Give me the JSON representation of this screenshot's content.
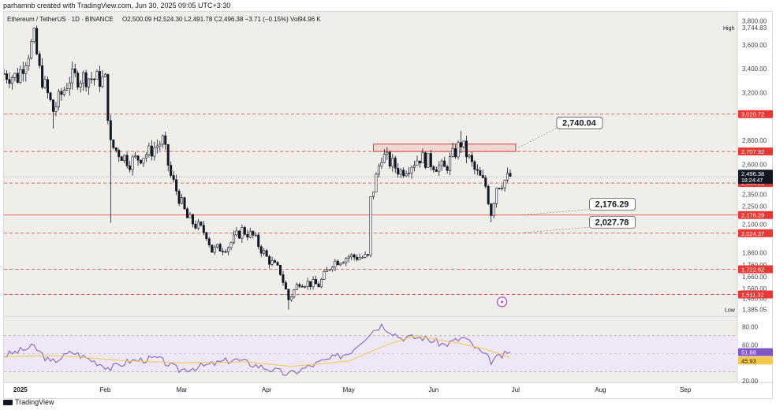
{
  "header": {
    "attribution": "parhamnb created with TradingView.com, Jun 30, 2025 09:05 UTC+3:30",
    "symbol": "Ethereum / TetherUS · 1D · BINANCE",
    "ohlc": "O2,500.09  H2,524.30  L2,491.78  C2,496.38  −3.71 (−0.15%)  Vol94.96 K"
  },
  "footer": {
    "brand": "TradingView"
  },
  "colors": {
    "up": "#131722",
    "down": "#131722",
    "bg": "#f0eeeb",
    "red": "#e53935",
    "rsi_line": "#7e57c2",
    "rsi_ma": "#f2c94c",
    "rsi_band": "#ede7f6"
  },
  "chart_data": {
    "type": "candlestick",
    "title": "Ethereum / TetherUS · 1D · BINANCE",
    "ylim": [
      1350,
      3850
    ],
    "y_ticks": [
      3800,
      3600,
      3400,
      3200,
      2800,
      2600,
      2350,
      2250,
      2100,
      1860,
      1760,
      1660,
      1560,
      1480
    ],
    "x_labels": [
      "2025",
      "Feb",
      "Mar",
      "Apr",
      "May",
      "Jun",
      "Jul",
      "Aug",
      "Sep"
    ],
    "x_label_dates": [
      "2025-01-01",
      "2025-02-01",
      "2025-03-01",
      "2025-04-01",
      "2025-05-01",
      "2025-06-01",
      "2025-07-01",
      "2025-08-01",
      "2025-09-01"
    ],
    "start_date": "2024-12-26",
    "end_date": "2025-09-20",
    "close_path": [
      [
        "2024-12-26",
        3360
      ],
      [
        "2024-12-31",
        3330
      ],
      [
        "2025-01-06",
        3650
      ],
      [
        "2025-01-08",
        3380
      ],
      [
        "2025-01-13",
        3050
      ],
      [
        "2025-01-19",
        3320
      ],
      [
        "2025-01-25",
        3330
      ],
      [
        "2025-02-01",
        3300
      ],
      [
        "2025-02-03",
        2760
      ],
      [
        "2025-02-10",
        2620
      ],
      [
        "2025-02-17",
        2700
      ],
      [
        "2025-02-22",
        2800
      ],
      [
        "2025-02-25",
        2500
      ],
      [
        "2025-03-03",
        2150
      ],
      [
        "2025-03-10",
        2020
      ],
      [
        "2025-03-12",
        1880
      ],
      [
        "2025-03-18",
        1920
      ],
      [
        "2025-03-23",
        2050
      ],
      [
        "2025-03-27",
        2000
      ],
      [
        "2025-04-01",
        1820
      ],
      [
        "2025-04-06",
        1700
      ],
      [
        "2025-04-09",
        1470
      ],
      [
        "2025-04-13",
        1620
      ],
      [
        "2025-04-20",
        1590
      ],
      [
        "2025-04-25",
        1780
      ],
      [
        "2025-05-01",
        1830
      ],
      [
        "2025-05-08",
        1820
      ],
      [
        "2025-05-09",
        2300
      ],
      [
        "2025-05-13",
        2680
      ],
      [
        "2025-05-20",
        2540
      ],
      [
        "2025-05-27",
        2660
      ],
      [
        "2025-06-05",
        2560
      ],
      [
        "2025-06-11",
        2780
      ],
      [
        "2025-06-16",
        2550
      ],
      [
        "2025-06-20",
        2420
      ],
      [
        "2025-06-22",
        2200
      ],
      [
        "2025-06-24",
        2420
      ],
      [
        "2025-06-29",
        2500
      ]
    ],
    "low_spikes": [
      [
        "2025-02-03",
        2110
      ],
      [
        "2025-04-09",
        1385
      ],
      [
        "2025-06-22",
        2115
      ],
      [
        "2025-01-13",
        2900
      ]
    ],
    "high_spikes": [
      [
        "2025-01-06",
        3745
      ],
      [
        "2025-06-11",
        2880
      ],
      [
        "2025-02-22",
        2850
      ]
    ],
    "levels": [
      {
        "label": "3,020.72",
        "value": 3020.72,
        "style": "dashed",
        "color": "#e53935"
      },
      {
        "label": "2,707.92",
        "value": 2707.92,
        "style": "dashed",
        "color": "#e53935"
      },
      {
        "label": "2,444.23",
        "value": 2444.23,
        "style": "dashed",
        "color": "#e53935"
      },
      {
        "label": "2,176.29",
        "value": 2176.29,
        "style": "solid",
        "color": "#e53935"
      },
      {
        "label": "2,024.37",
        "value": 2024.37,
        "style": "dashed",
        "color": "#e53935"
      },
      {
        "label": "1,722.62",
        "value": 1722.62,
        "style": "dashed",
        "color": "#e53935"
      },
      {
        "label": "1,511.32",
        "value": 1511.32,
        "style": "dashed",
        "color": "#e53935"
      }
    ],
    "high_label": {
      "text": "High",
      "value_label": "3,744.83",
      "value": 3744.83
    },
    "low_label": {
      "text": "Low",
      "value_label": "1,385.05",
      "value": 1385.05
    },
    "last_price": {
      "value": 2496.38,
      "label": "2,496.38",
      "countdown": "18:24:47"
    },
    "resistance_zone": {
      "from": "2025-05-10",
      "to": "2025-07-01",
      "top": 2770,
      "bottom": 2707.92
    },
    "callouts": [
      {
        "text": "2,740.04",
        "value": 2740.04,
        "date": "2025-07-02",
        "text_date": "2025-07-16",
        "text_value": 2950
      },
      {
        "text": "2,176.29",
        "value": 2176.29,
        "date": "2025-07-03",
        "text_date": "2025-07-28",
        "text_value": 2270
      },
      {
        "text": "2,027.78",
        "value": 2027.78,
        "date": "2025-07-03",
        "text_date": "2025-07-28",
        "text_value": 2120
      }
    ],
    "rsi": {
      "ylim": [
        20,
        90
      ],
      "ticks": [
        80,
        60,
        20
      ],
      "tick_labels": [
        "80.00",
        "60.00",
        "20.00"
      ],
      "band": [
        30,
        70
      ],
      "value": 51.88,
      "value_label": "51.88",
      "ma_value": 45.93,
      "ma_label": "45.93",
      "line": [
        [
          "2024-12-26",
          48
        ],
        [
          "2025-01-06",
          58
        ],
        [
          "2025-01-12",
          40
        ],
        [
          "2025-01-20",
          52
        ],
        [
          "2025-02-03",
          34
        ],
        [
          "2025-02-10",
          42
        ],
        [
          "2025-02-20",
          45
        ],
        [
          "2025-02-28",
          32
        ],
        [
          "2025-03-10",
          37
        ],
        [
          "2025-03-20",
          44
        ],
        [
          "2025-04-01",
          34
        ],
        [
          "2025-04-09",
          27
        ],
        [
          "2025-04-20",
          40
        ],
        [
          "2025-05-01",
          51
        ],
        [
          "2025-05-09",
          74
        ],
        [
          "2025-05-13",
          82
        ],
        [
          "2025-05-20",
          68
        ],
        [
          "2025-05-28",
          68
        ],
        [
          "2025-06-05",
          60
        ],
        [
          "2025-06-12",
          68
        ],
        [
          "2025-06-22",
          42
        ],
        [
          "2025-06-29",
          51.88
        ]
      ],
      "ma_line": [
        [
          "2024-12-26",
          47
        ],
        [
          "2025-01-15",
          48
        ],
        [
          "2025-02-10",
          42
        ],
        [
          "2025-03-01",
          40
        ],
        [
          "2025-03-25",
          41
        ],
        [
          "2025-04-10",
          36
        ],
        [
          "2025-05-01",
          42
        ],
        [
          "2025-05-15",
          60
        ],
        [
          "2025-05-25",
          70
        ],
        [
          "2025-06-10",
          62
        ],
        [
          "2025-06-20",
          55
        ],
        [
          "2025-06-29",
          45.93
        ]
      ]
    }
  }
}
